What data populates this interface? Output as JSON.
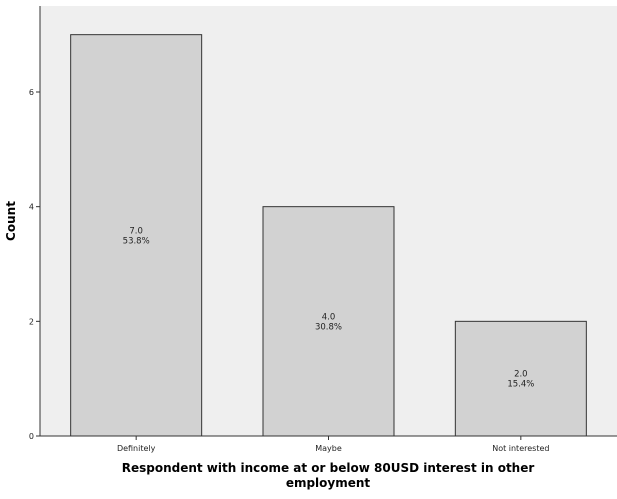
{
  "chart_data": {
    "type": "bar",
    "categories": [
      "Definitely",
      "Maybe",
      "Not interested"
    ],
    "values": [
      7,
      4,
      2
    ],
    "value_labels": [
      "7.0",
      "4.0",
      "2.0"
    ],
    "percent_labels": [
      "53.8%",
      "30.8%",
      "15.4%"
    ],
    "xlabel_lines": [
      "Respondent with income at or below 80USD interest in other",
      "employment"
    ],
    "ylabel": "Count",
    "ylim": [
      0,
      7.5
    ],
    "yticks": [
      0,
      2,
      4,
      6
    ],
    "grid": false,
    "colors": {
      "plot_background": "#efefef",
      "bar_fill": "#d2d2d2",
      "bar_stroke": "#333333",
      "axis": "#333333"
    }
  }
}
